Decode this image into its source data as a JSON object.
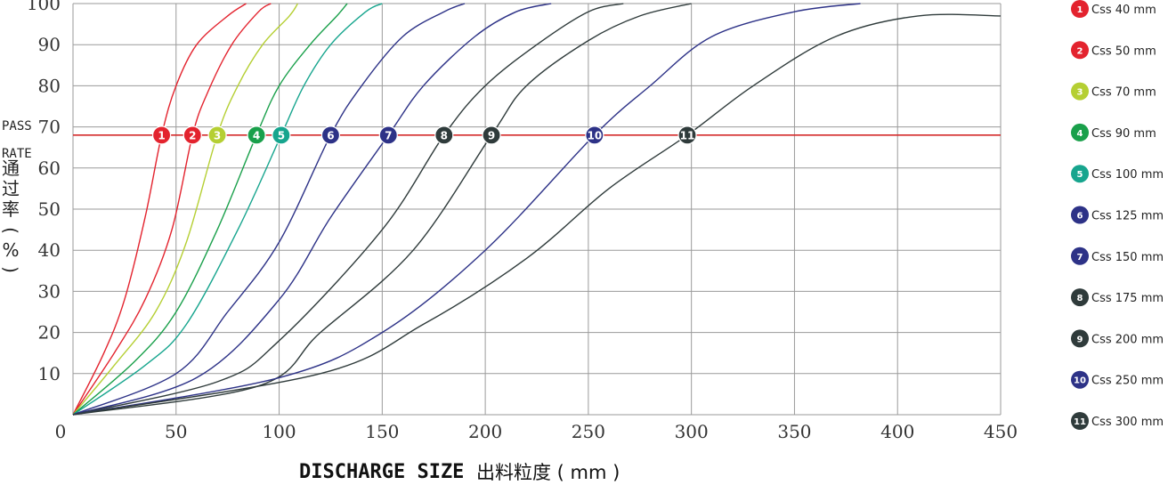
{
  "chart_data": {
    "type": "line",
    "x_ticks": [
      "0",
      "50",
      "100",
      "150",
      "200",
      "250",
      "300",
      "350",
      "400",
      "450"
    ],
    "y_ticks": [
      "10",
      "20",
      "30",
      "40",
      "50",
      "60",
      "70",
      "80",
      "90",
      "100"
    ],
    "xlim": [
      0,
      450
    ],
    "ylim": [
      0,
      100
    ],
    "grid": true,
    "xlabel": "DISCHARGE SIZE",
    "xlabel_cn": "出料粒度 ( mm )",
    "ylabel_lines": [
      "PASS",
      "RATE"
    ],
    "ylabel_cn": [
      "通",
      "过",
      "率",
      "(",
      "%",
      ")"
    ],
    "reference_line": {
      "y": 68,
      "color": "#d42a2a"
    },
    "legend_position": "right",
    "series": [
      {
        "marker": "1",
        "name": "Css 40 mm",
        "color": "#e3232e",
        "points": [
          [
            0,
            0
          ],
          [
            15,
            15
          ],
          [
            25,
            28
          ],
          [
            35,
            48
          ],
          [
            43,
            68
          ],
          [
            50,
            80
          ],
          [
            60,
            90
          ],
          [
            75,
            97
          ],
          [
            84,
            100
          ]
        ]
      },
      {
        "marker": "2",
        "name": "Css 50 mm",
        "color": "#e3232e",
        "points": [
          [
            0,
            0
          ],
          [
            20,
            15
          ],
          [
            35,
            28
          ],
          [
            48,
            45
          ],
          [
            58,
            68
          ],
          [
            65,
            78
          ],
          [
            77,
            90
          ],
          [
            90,
            98
          ],
          [
            96,
            100
          ]
        ]
      },
      {
        "marker": "3",
        "name": "Css 70 mm",
        "color": "#b5cf33",
        "points": [
          [
            0,
            0
          ],
          [
            20,
            12
          ],
          [
            40,
            25
          ],
          [
            55,
            42
          ],
          [
            70,
            68
          ],
          [
            80,
            80
          ],
          [
            92,
            90
          ],
          [
            105,
            97
          ],
          [
            109,
            100
          ]
        ]
      },
      {
        "marker": "4",
        "name": "Css 90 mm",
        "color": "#1aa04b",
        "points": [
          [
            0,
            0
          ],
          [
            30,
            13
          ],
          [
            50,
            25
          ],
          [
            70,
            45
          ],
          [
            89,
            68
          ],
          [
            100,
            80
          ],
          [
            115,
            90
          ],
          [
            128,
            97
          ],
          [
            133,
            100
          ]
        ]
      },
      {
        "marker": "5",
        "name": "Css 100 mm",
        "color": "#17a58e",
        "points": [
          [
            0,
            0
          ],
          [
            35,
            12
          ],
          [
            55,
            22
          ],
          [
            80,
            45
          ],
          [
            101,
            68
          ],
          [
            112,
            80
          ],
          [
            125,
            90
          ],
          [
            142,
            98
          ],
          [
            150,
            100
          ]
        ]
      },
      {
        "marker": "6",
        "name": "Css 125 mm",
        "color": "#2d3287",
        "points": [
          [
            0,
            0
          ],
          [
            50,
            10
          ],
          [
            75,
            25
          ],
          [
            100,
            42
          ],
          [
            125,
            68
          ],
          [
            140,
            80
          ],
          [
            160,
            92
          ],
          [
            180,
            98
          ],
          [
            190,
            100
          ]
        ]
      },
      {
        "marker": "7",
        "name": "Css 150 mm",
        "color": "#2d3287",
        "points": [
          [
            0,
            0
          ],
          [
            60,
            9
          ],
          [
            100,
            28
          ],
          [
            125,
            48
          ],
          [
            153,
            68
          ],
          [
            170,
            80
          ],
          [
            195,
            92
          ],
          [
            215,
            98
          ],
          [
            232,
            100
          ]
        ]
      },
      {
        "marker": "8",
        "name": "Css 175 mm",
        "color": "#2f3b3b",
        "points": [
          [
            0,
            0
          ],
          [
            70,
            8
          ],
          [
            100,
            18
          ],
          [
            150,
            45
          ],
          [
            180,
            68
          ],
          [
            200,
            80
          ],
          [
            225,
            90
          ],
          [
            250,
            98
          ],
          [
            267,
            100
          ]
        ]
      },
      {
        "marker": "9",
        "name": "Css 200 mm",
        "color": "#2f3b3b",
        "points": [
          [
            0,
            0
          ],
          [
            90,
            7
          ],
          [
            120,
            20
          ],
          [
            165,
            40
          ],
          [
            203,
            68
          ],
          [
            220,
            80
          ],
          [
            250,
            91
          ],
          [
            275,
            97
          ],
          [
            300,
            100
          ]
        ]
      },
      {
        "marker": "10",
        "name": "Css 250 mm",
        "color": "#2d3287",
        "points": [
          [
            0,
            0
          ],
          [
            100,
            9
          ],
          [
            150,
            20
          ],
          [
            200,
            40
          ],
          [
            253,
            68
          ],
          [
            280,
            80
          ],
          [
            310,
            92
          ],
          [
            350,
            98
          ],
          [
            382,
            100
          ]
        ]
      },
      {
        "marker": "11",
        "name": "Css 300 mm",
        "color": "#2f3b3b",
        "points": [
          [
            0,
            0
          ],
          [
            120,
            10
          ],
          [
            170,
            22
          ],
          [
            220,
            38
          ],
          [
            260,
            55
          ],
          [
            298,
            68
          ],
          [
            330,
            80
          ],
          [
            370,
            92
          ],
          [
            410,
            97
          ],
          [
            450,
            97
          ]
        ]
      }
    ]
  }
}
